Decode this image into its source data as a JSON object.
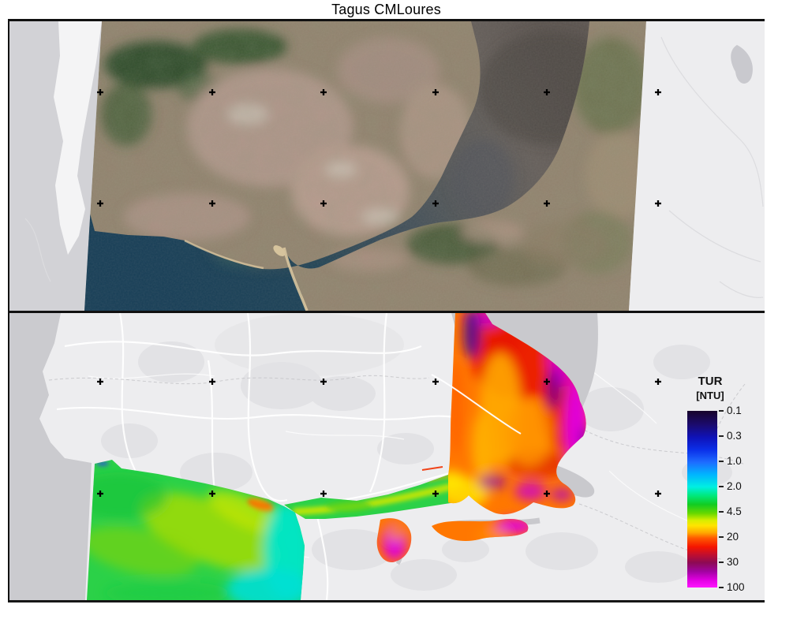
{
  "title": "Tagus CMLoures",
  "colorbar": {
    "title": "TUR",
    "unit": "[NTU]",
    "ticks": [
      "0.1",
      "0.3",
      "1.0",
      "2.0",
      "4.5",
      "20",
      "30",
      "100"
    ],
    "gradient": [
      [
        "#18032a",
        0
      ],
      [
        "#1b0b70",
        8
      ],
      [
        "#0f12b8",
        15
      ],
      [
        "#0b2fe8",
        22
      ],
      [
        "#1e6bff",
        29
      ],
      [
        "#00b4ff",
        36
      ],
      [
        "#00efe2",
        43
      ],
      [
        "#00e87c",
        48
      ],
      [
        "#12cc22",
        53
      ],
      [
        "#67d800",
        58
      ],
      [
        "#d8ee00",
        62
      ],
      [
        "#ffe400",
        65
      ],
      [
        "#ffa800",
        69
      ],
      [
        "#ff5a00",
        72
      ],
      [
        "#f51500",
        77
      ],
      [
        "#c60f2a",
        81
      ],
      [
        "#8c0a55",
        86
      ],
      [
        "#a203a2",
        91
      ],
      [
        "#e400e4",
        96
      ],
      [
        "#ff16ff",
        100
      ]
    ]
  },
  "markers": {
    "top": {
      "cols": [
        115,
        257,
        398,
        540,
        681,
        822
      ],
      "rows": [
        90,
        231
      ]
    },
    "bottom": {
      "cols": [
        115,
        257,
        398,
        540,
        681,
        822
      ],
      "rows": [
        87,
        229
      ]
    }
  }
}
